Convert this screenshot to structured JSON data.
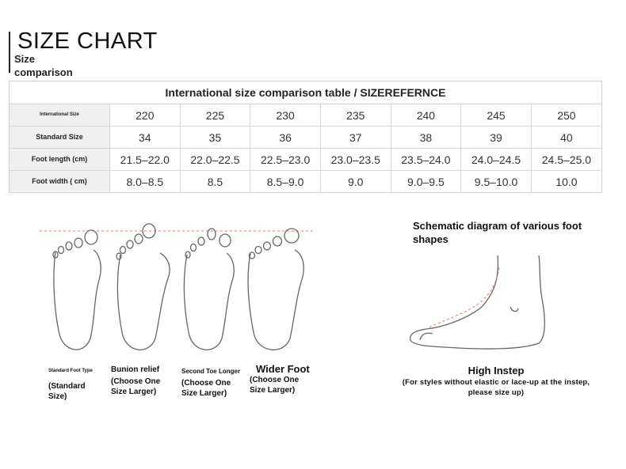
{
  "header": {
    "title": "SIZE CHART",
    "subtitle": "Size comparison"
  },
  "table": {
    "title": "International size comparison table / SIZEREFERNCE",
    "rows": [
      {
        "label": "International Size",
        "values": [
          "220",
          "225",
          "230",
          "235",
          "240",
          "245",
          "250"
        ]
      },
      {
        "label": "Standard Size",
        "values": [
          "34",
          "35",
          "36",
          "37",
          "38",
          "39",
          "40"
        ]
      },
      {
        "label": "Foot length (cm)",
        "values": [
          "21.5–22.0",
          "22.0–22.5",
          "22.5–23.0",
          "23.0–23.5",
          "23.5–24.0",
          "24.0–24.5",
          "24.5–25.0"
        ]
      },
      {
        "label": "Foot width ( cm)",
        "values": [
          "8.0–8.5",
          "8.5",
          "8.5–9.0",
          "9.0",
          "9.0–9.5",
          "9.5–10.0",
          "10.0"
        ]
      }
    ]
  },
  "feet": [
    {
      "name": "Standard Foot Type",
      "note": "(Standard Size)"
    },
    {
      "name": "Bunion relief",
      "note": "(Choose One Size Larger)"
    },
    {
      "name": "Second Toe Longer",
      "note": "(Choose One Size Larger)"
    },
    {
      "name": "Wider Foot",
      "note": "(Choose One Size Larger)"
    }
  ],
  "schematic": {
    "title": "Schematic diagram of various foot shapes",
    "instep_title": "High Instep",
    "instep_note": "(For styles without elastic or lace-up at the instep, please size up)"
  },
  "colors": {
    "guide_line": "#e07a6a",
    "outline": "#666666",
    "header_cell": "#f0f0f0",
    "grid": "#d8d8d8"
  }
}
